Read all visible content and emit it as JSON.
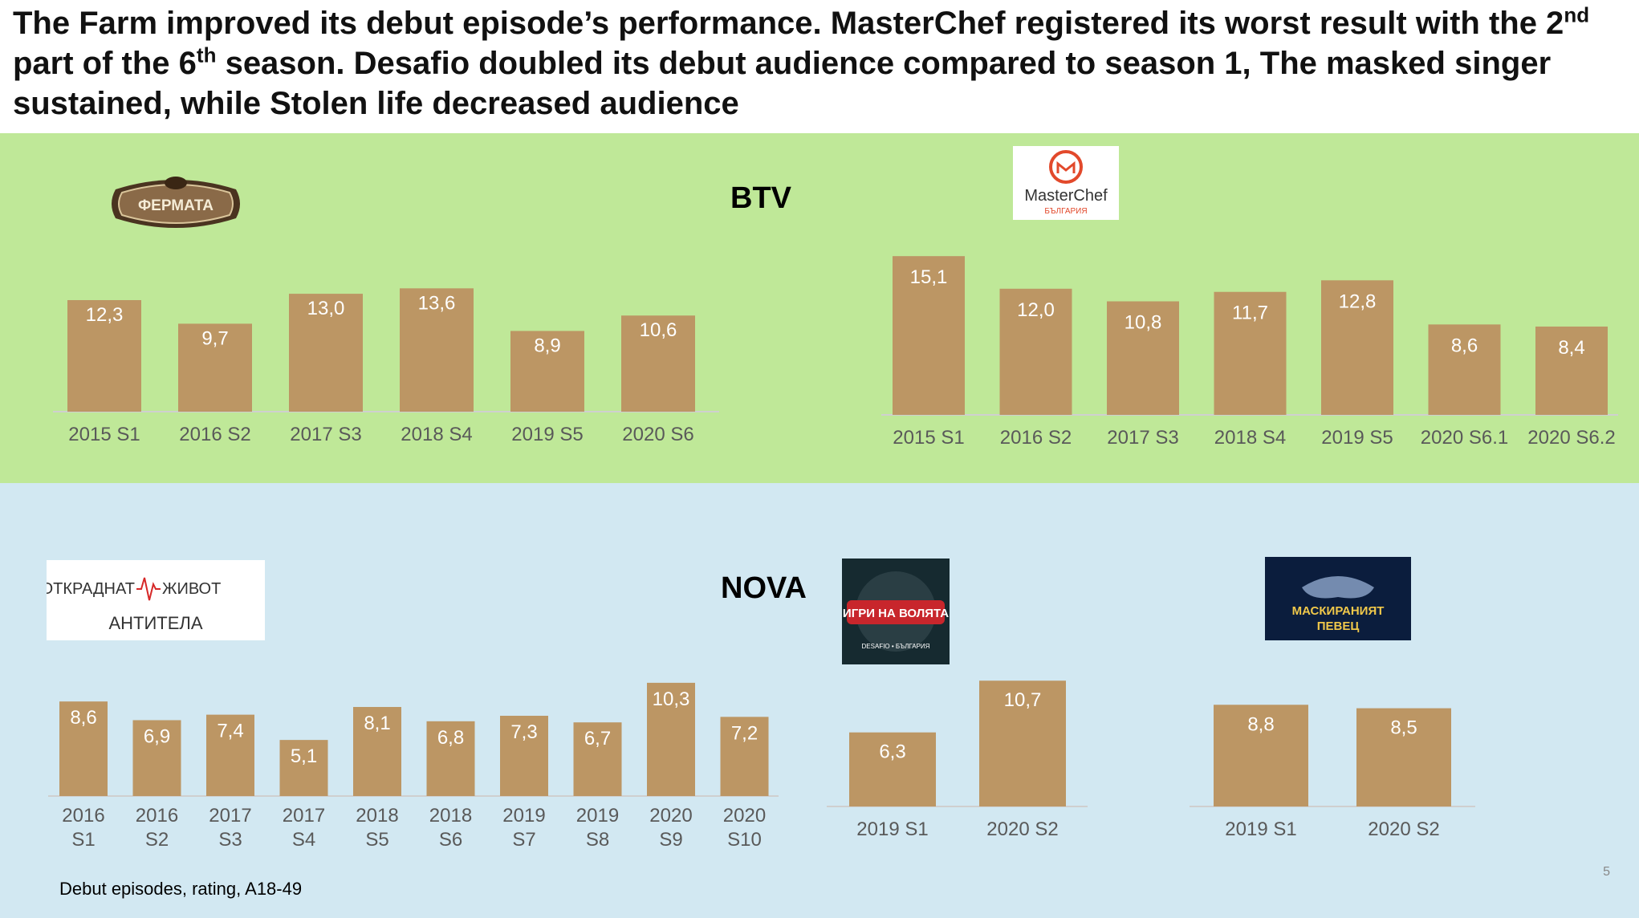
{
  "title": {
    "part1": "The Farm improved its debut episode’s performance. MasterChef registered its worst result with the 2",
    "sup1": "nd",
    "part2": " part of the 6",
    "sup2": "th",
    "part3": " season. Desafio doubled its debut audience compared to season 1, The masked singer sustained, while Stolen life decreased audience"
  },
  "sections": {
    "btv": "BTV",
    "nova": "NOVA"
  },
  "logos": {
    "farm": "ФЕРМАТА",
    "masterchef": {
      "name": "MasterChef",
      "sub": "БЪЛГАРИЯ"
    },
    "stolen_life": {
      "line1a": "ОТКРАДНАТ",
      "line1b": "ЖИВОТ",
      "line2": "АНТИТЕЛА"
    },
    "desafio": {
      "name": "ИГРИ НА ВОЛЯТА",
      "sub": "DESAFIO • БЪЛГАРИЯ"
    },
    "masked_singer": {
      "line1": "МАСКИРАНИЯТ",
      "line2": "ПЕВЕЦ"
    }
  },
  "colors": {
    "bar": "#bc9664",
    "btv_band": "#bfe898",
    "nova_band": "#d2e8f2",
    "axis": "#cfcfcf"
  },
  "chart_data": [
    {
      "type": "bar",
      "name": "The Farm",
      "categories": [
        "2015 S1",
        "2016 S2",
        "2017 S3",
        "2018 S4",
        "2019 S5",
        "2020 S6"
      ],
      "values": [
        12.3,
        9.7,
        13.0,
        13.6,
        8.9,
        10.6
      ],
      "labels": [
        "12,3",
        "9,7",
        "13,0",
        "13,6",
        "8,9",
        "10,6"
      ]
    },
    {
      "type": "bar",
      "name": "MasterChef",
      "categories": [
        "2015 S1",
        "2016 S2",
        "2017 S3",
        "2018 S4",
        "2019 S5",
        "2020 S6.1",
        "2020 S6.2"
      ],
      "values": [
        15.1,
        12.0,
        10.8,
        11.7,
        12.8,
        8.6,
        8.4
      ],
      "labels": [
        "15,1",
        "12,0",
        "10,8",
        "11,7",
        "12,8",
        "8,6",
        "8,4"
      ]
    },
    {
      "type": "bar",
      "name": "Stolen life",
      "categories": [
        "2016 S1",
        "2016 S2",
        "2017 S3",
        "2017 S4",
        "2018 S5",
        "2018 S6",
        "2019 S7",
        "2019 S8",
        "2020 S9",
        "2020 S10"
      ],
      "values": [
        8.6,
        6.9,
        7.4,
        5.1,
        8.1,
        6.8,
        7.3,
        6.7,
        10.3,
        7.2
      ],
      "labels": [
        "8,6",
        "6,9",
        "7,4",
        "5,1",
        "8,1",
        "6,8",
        "7,3",
        "6,7",
        "10,3",
        "7,2"
      ]
    },
    {
      "type": "bar",
      "name": "Desafio",
      "categories": [
        "2019 S1",
        "2020 S2"
      ],
      "values": [
        6.3,
        10.7
      ],
      "labels": [
        "6,3",
        "10,7"
      ]
    },
    {
      "type": "bar",
      "name": "The masked singer",
      "categories": [
        "2019 S1",
        "2020 S2"
      ],
      "values": [
        8.8,
        8.5
      ],
      "labels": [
        "8,8",
        "8,5"
      ]
    }
  ],
  "footnote": "Debut episodes, rating, A18-49",
  "page_number": "5"
}
